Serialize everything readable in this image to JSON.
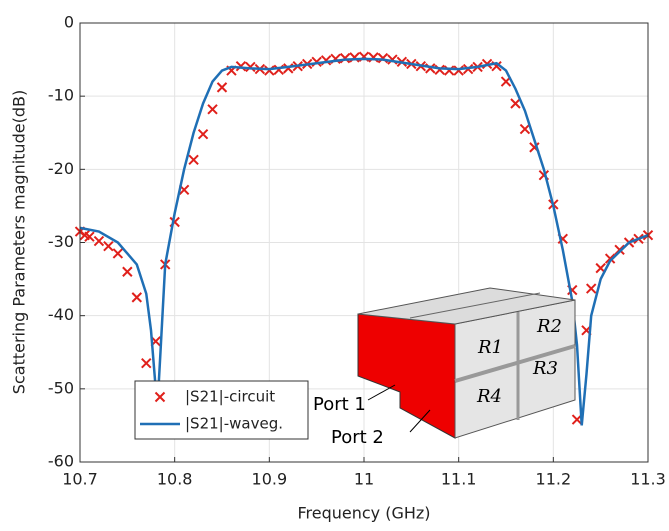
{
  "chart_data": {
    "type": "line",
    "x_label": "Frequency (GHz)",
    "y_label": "Scattering Parameters magnitude(dB)",
    "xlim": [
      10.7,
      11.3
    ],
    "xticks": [
      10.7,
      10.8,
      10.9,
      11,
      11.1,
      11.2,
      11.3
    ],
    "ylim": [
      -60,
      0
    ],
    "yticks": [
      0,
      -10,
      -20,
      -30,
      -40,
      -50,
      -60
    ],
    "grid": true,
    "series": [
      {
        "name": "|S21|-circuit",
        "color": "#e0201b",
        "mode": "markers",
        "x": [
          10.7,
          10.705,
          10.71,
          10.72,
          10.73,
          10.74,
          10.75,
          10.76,
          10.77,
          10.78,
          10.79,
          10.8,
          10.81,
          10.82,
          10.83,
          10.84,
          10.85,
          10.86,
          10.87,
          10.88,
          10.89,
          10.9,
          10.91,
          10.92,
          10.93,
          10.94,
          10.95,
          10.96,
          10.97,
          10.98,
          10.99,
          11.0,
          11.01,
          11.02,
          11.03,
          11.04,
          11.05,
          11.06,
          11.07,
          11.08,
          11.09,
          11.1,
          11.11,
          11.12,
          11.13,
          11.14,
          11.15,
          11.16,
          11.17,
          11.18,
          11.19,
          11.2,
          11.21,
          11.22,
          11.225,
          11.235,
          11.24,
          11.25,
          11.26,
          11.27,
          11.28,
          11.29,
          11.3
        ],
        "values": [
          -28.5,
          -29,
          -29.2,
          -29.8,
          -30.5,
          -31.5,
          -34,
          -37.5,
          -46.5,
          -43.5,
          -33,
          -27.2,
          -22.8,
          -18.7,
          -15.2,
          -11.8,
          -8.8,
          -6.5,
          -5.9,
          -6,
          -6.3,
          -6.5,
          -6.4,
          -6.2,
          -5.9,
          -5.6,
          -5.3,
          -5.1,
          -4.9,
          -4.8,
          -4.7,
          -4.6,
          -4.7,
          -4.8,
          -5.0,
          -5.3,
          -5.6,
          -5.9,
          -6.2,
          -6.4,
          -6.5,
          -6.5,
          -6.3,
          -6,
          -5.6,
          -5.9,
          -8,
          -11,
          -14.5,
          -17,
          -20.8,
          -24.8,
          -29.5,
          -36.5,
          -54.2,
          -42,
          -36.3,
          -33.5,
          -32.2,
          -31,
          -30,
          -29.5,
          -29
        ]
      },
      {
        "name": "|S21|-waveg.",
        "color": "#1f6fb5",
        "mode": "line",
        "x": [
          10.7,
          10.72,
          10.74,
          10.76,
          10.77,
          10.775,
          10.78,
          10.782,
          10.785,
          10.79,
          10.8,
          10.81,
          10.82,
          10.83,
          10.84,
          10.85,
          10.86,
          10.88,
          10.9,
          10.92,
          10.95,
          10.98,
          11.0,
          11.02,
          11.05,
          11.08,
          11.1,
          11.12,
          11.14,
          11.15,
          11.16,
          11.17,
          11.18,
          11.19,
          11.2,
          11.21,
          11.22,
          11.225,
          11.23,
          11.235,
          11.24,
          11.25,
          11.26,
          11.28,
          11.3
        ],
        "values": [
          -28,
          -28.5,
          -30,
          -33,
          -37,
          -42,
          -50,
          -52,
          -45,
          -33,
          -26,
          -20,
          -15,
          -11,
          -8,
          -6.5,
          -6,
          -6.2,
          -6.3,
          -6,
          -5.5,
          -5,
          -4.9,
          -5,
          -5.6,
          -6.2,
          -6.3,
          -6,
          -5.5,
          -6.5,
          -9,
          -12,
          -16,
          -20,
          -25,
          -31,
          -38,
          -44,
          -55,
          -48,
          -40,
          -35,
          -32.5,
          -30,
          -29
        ]
      }
    ],
    "annotations": [
      "R1",
      "R2",
      "R3",
      "R4",
      "Port 1",
      "Port 2"
    ]
  }
}
